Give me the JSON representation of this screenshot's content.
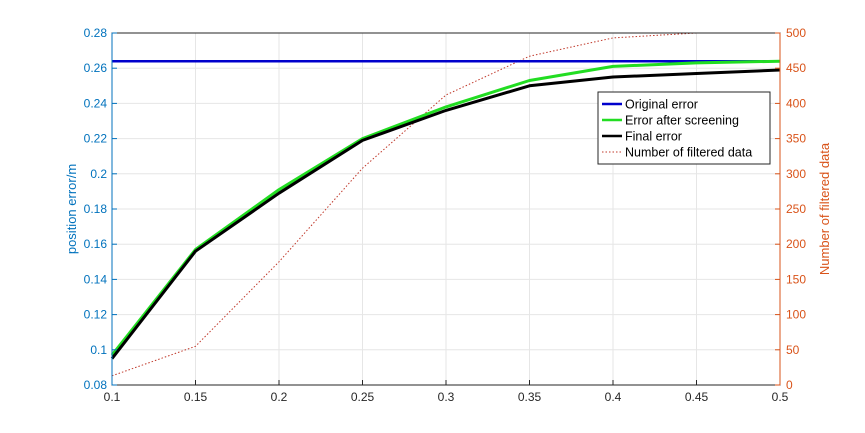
{
  "chart_data": {
    "type": "line",
    "title": "",
    "xlabel": "",
    "ylabel_left": "position error/m",
    "ylabel_right": "Number of filtered data",
    "xlim": [
      0.1,
      0.5
    ],
    "ylim_left": [
      0.08,
      0.28
    ],
    "ylim_right": [
      0,
      500
    ],
    "x_ticks": [
      "0.1",
      "0.15",
      "0.2",
      "0.25",
      "0.3",
      "0.35",
      "0.4",
      "0.45",
      "0.5"
    ],
    "y_left_ticks": [
      "0.08",
      "0.1",
      "0.12",
      "0.14",
      "0.16",
      "0.18",
      "0.2",
      "0.22",
      "0.24",
      "0.26",
      "0.28"
    ],
    "y_right_ticks": [
      "0",
      "50",
      "100",
      "150",
      "200",
      "250",
      "300",
      "350",
      "400",
      "450",
      "500"
    ],
    "grid": true,
    "legend_position": "right",
    "x": [
      0.1,
      0.15,
      0.2,
      0.25,
      0.3,
      0.35,
      0.4,
      0.45,
      0.5
    ],
    "series": [
      {
        "name": "Original error",
        "axis": "left",
        "color": "#0000cc",
        "style": "solid",
        "values": [
          0.264,
          0.264,
          0.264,
          0.264,
          0.264,
          0.264,
          0.264,
          0.264,
          0.264
        ]
      },
      {
        "name": "Error after screening",
        "axis": "left",
        "color": "#22dd22",
        "style": "solid",
        "values": [
          0.097,
          0.157,
          0.191,
          0.22,
          0.238,
          0.253,
          0.261,
          0.263,
          0.264
        ]
      },
      {
        "name": "Final error",
        "axis": "left",
        "color": "#000000",
        "style": "solid",
        "values": [
          0.095,
          0.156,
          0.189,
          0.219,
          0.236,
          0.25,
          0.255,
          0.257,
          0.259
        ]
      },
      {
        "name": "Number of filtered data",
        "axis": "right",
        "color": "#c0392b",
        "style": "dotted",
        "values": [
          13,
          55,
          175,
          308,
          412,
          467,
          493,
          500,
          500
        ]
      }
    ],
    "colors": {
      "left_axis": "#0072bd",
      "right_axis": "#d95319",
      "grid": "#e6e6e6",
      "frame": "#262626"
    }
  }
}
